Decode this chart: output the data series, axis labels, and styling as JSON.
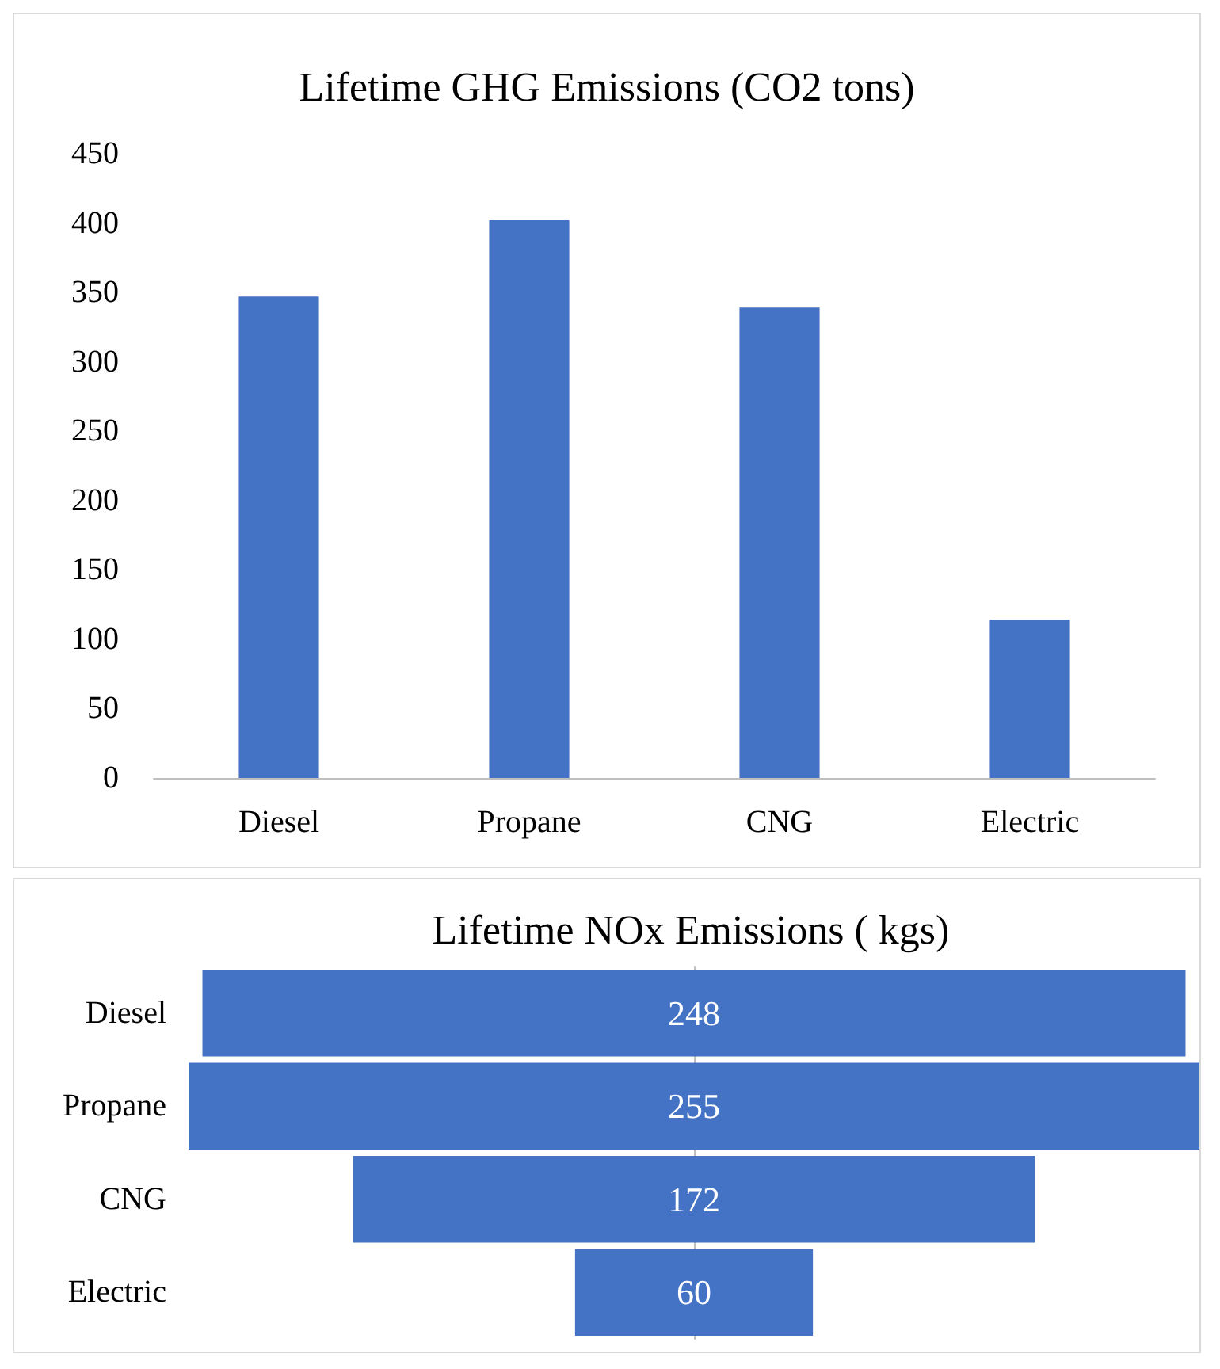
{
  "chart_data": [
    {
      "type": "bar",
      "title": "Lifetime GHG Emissions (CO2 tons)",
      "categories": [
        "Diesel",
        "Propane",
        "CNG",
        "Electric"
      ],
      "values": [
        347,
        402,
        339,
        114
      ],
      "color": "#4472c4",
      "ylim": [
        0,
        450
      ],
      "yticks": [
        0,
        50,
        100,
        150,
        200,
        250,
        300,
        350,
        400,
        450
      ],
      "grid": false
    },
    {
      "type": "other",
      "title": "Lifetime NOx Emissions ( kgs)",
      "categories": [
        "Diesel",
        "Propane",
        "CNG",
        "Electric"
      ],
      "values": [
        248,
        255,
        172,
        60
      ],
      "color": "#4472c4",
      "data_labels": true
    }
  ]
}
